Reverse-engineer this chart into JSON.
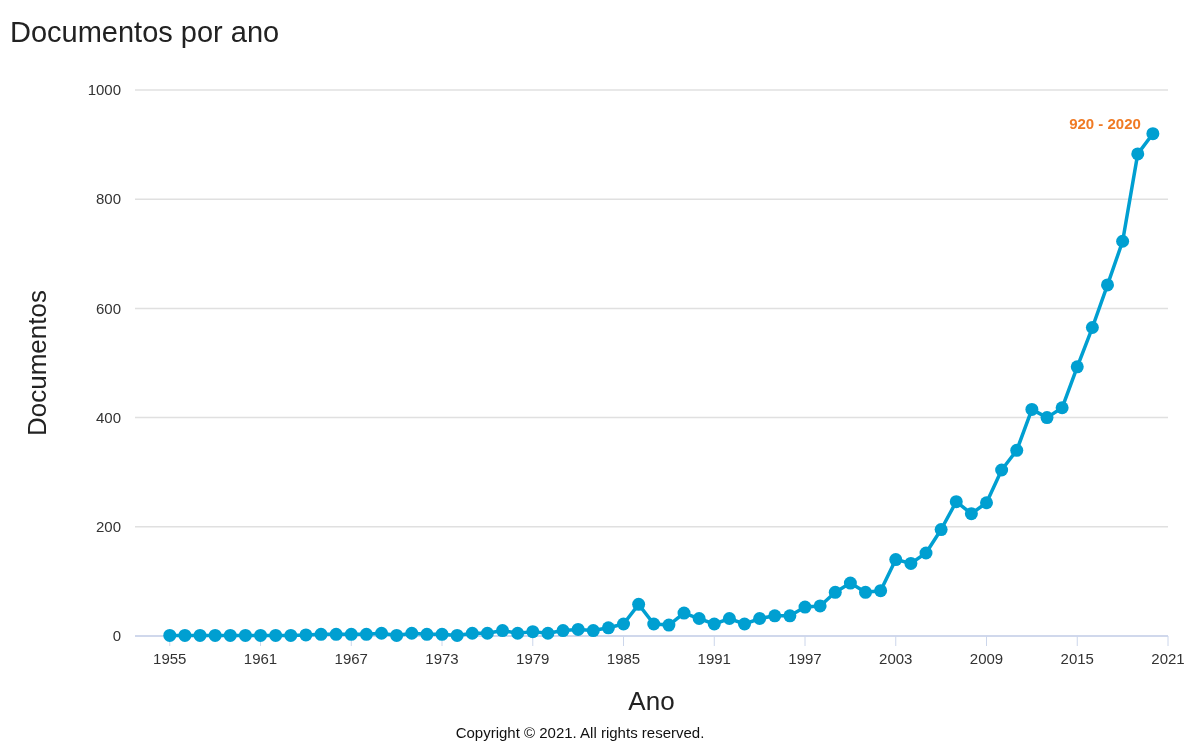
{
  "chart_data": {
    "type": "line",
    "title": "Documentos por ano",
    "xlabel": "Ano",
    "ylabel": "Documentos",
    "x": [
      1955,
      1956,
      1957,
      1958,
      1959,
      1960,
      1961,
      1962,
      1963,
      1964,
      1965,
      1966,
      1967,
      1968,
      1969,
      1970,
      1971,
      1972,
      1973,
      1974,
      1975,
      1976,
      1977,
      1978,
      1979,
      1980,
      1981,
      1982,
      1983,
      1984,
      1985,
      1986,
      1987,
      1988,
      1989,
      1990,
      1991,
      1992,
      1993,
      1994,
      1995,
      1996,
      1997,
      1998,
      1999,
      2000,
      2001,
      2002,
      2003,
      2004,
      2005,
      2006,
      2007,
      2008,
      2009,
      2010,
      2011,
      2012,
      2013,
      2014,
      2015,
      2016,
      2017,
      2018,
      2019,
      2020
    ],
    "series": [
      {
        "color": "#009fd1",
        "values": [
          1,
          1,
          1,
          1,
          1,
          1,
          1,
          1,
          1,
          2,
          3,
          3,
          3,
          3,
          5,
          1,
          5,
          3,
          3,
          1,
          5,
          5,
          10,
          5,
          8,
          5,
          10,
          12,
          10,
          15,
          22,
          58,
          22,
          20,
          42,
          32,
          22,
          32,
          22,
          32,
          37,
          37,
          53,
          55,
          80,
          97,
          80,
          83,
          140,
          133,
          152,
          195,
          246,
          224,
          244,
          304,
          340,
          415,
          400,
          418,
          493,
          565,
          643,
          723,
          883,
          920
        ]
      }
    ],
    "xlim": [
      1952.7,
      2021
    ],
    "xticks": [
      1955,
      1961,
      1967,
      1973,
      1979,
      1985,
      1991,
      1997,
      2003,
      2009,
      2015,
      2021
    ],
    "ylim": [
      0,
      1000
    ],
    "yticks": [
      0,
      200,
      400,
      600,
      800,
      1000
    ],
    "grid": "y",
    "marker": "circle",
    "line_style": "solid",
    "annotations": [
      {
        "text": "920 - 2020",
        "x": 2020,
        "y": 920
      },
      "Copyright © 2021. All rights reserved."
    ]
  }
}
